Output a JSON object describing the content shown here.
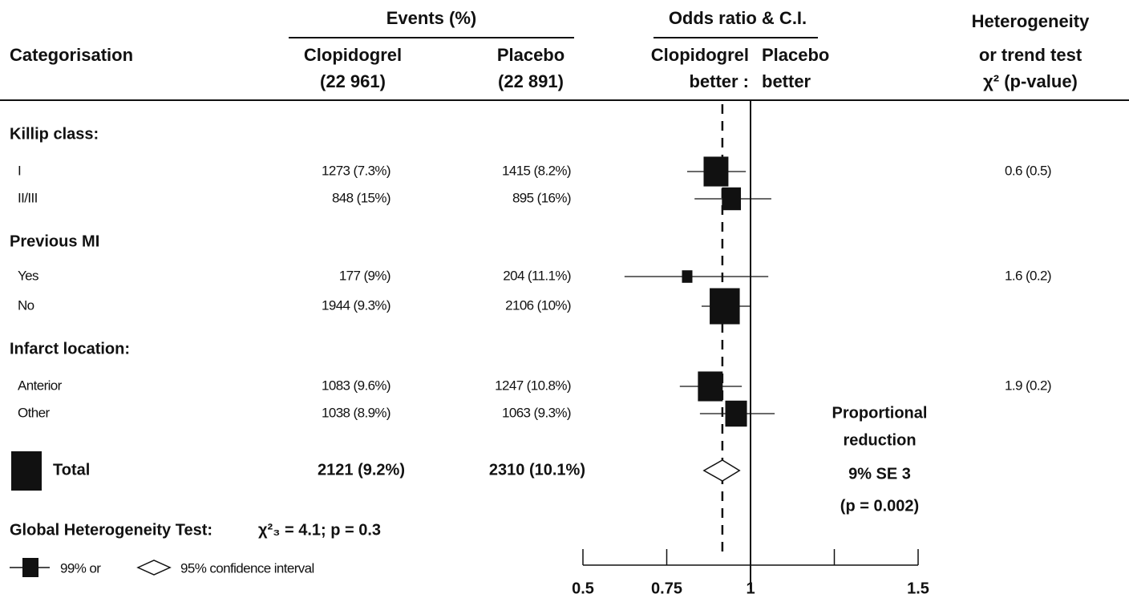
{
  "chart_data": {
    "type": "forest",
    "headers": {
      "category": "Categorisation",
      "events": "Events (%)",
      "clopidogrel": [
        "Clopidogrel",
        "(22 961)"
      ],
      "placebo": [
        "Placebo",
        "(22 891)"
      ],
      "odds": "Odds ratio & C.I.",
      "left_better": [
        "Clopidogrel",
        "better :"
      ],
      "right_better": [
        "Placebo",
        "better"
      ],
      "heterogeneity": [
        "Heterogeneity",
        "or trend test",
        "χ² (p-value)"
      ]
    },
    "groups": [
      {
        "title": "Killip class:",
        "heterogeneity": "0.6 (0.5)",
        "rows": [
          {
            "label": "I",
            "clopidogrel": "1273 (7.3%)",
            "placebo": "1415 (8.2%)",
            "or": 0.897,
            "ci": [
              0.811,
              0.986
            ],
            "weight": 17
          },
          {
            "label": "II/III",
            "clopidogrel": "848 (15%)",
            "placebo": "895 (16%)",
            "or": 0.943,
            "ci": [
              0.833,
              1.062
            ],
            "weight": 10
          }
        ]
      },
      {
        "title": "Previous MI",
        "heterogeneity": "1.6 (0.2)",
        "rows": [
          {
            "label": "Yes",
            "clopidogrel": "177 (9%)",
            "placebo": "204 (11.1%)",
            "or": 0.811,
            "ci": [
              0.624,
              1.053
            ],
            "weight": 3
          },
          {
            "label": "No",
            "clopidogrel": "1944 (9.3%)",
            "placebo": "2106 (10%)",
            "or": 0.923,
            "ci": [
              0.854,
              1.002
            ],
            "weight": 25
          }
        ]
      },
      {
        "title": "Infarct location:",
        "heterogeneity": "1.9 (0.2)",
        "rows": [
          {
            "label": "Anterior",
            "clopidogrel": "1083 (9.6%)",
            "placebo": "1247 (10.8%)",
            "or": 0.88,
            "ci": [
              0.789,
              0.974
            ],
            "weight": 17
          },
          {
            "label": "Other",
            "clopidogrel": "1038 (8.9%)",
            "placebo": "1063 (9.3%)",
            "or": 0.957,
            "ci": [
              0.849,
              1.072
            ],
            "weight": 13
          }
        ]
      }
    ],
    "total": {
      "label": "Total",
      "clopidogrel": "2121 (9.2%)",
      "placebo": "2310 (10.1%)",
      "or": 0.916,
      "ci": [
        0.861,
        0.967
      ]
    },
    "reduction": [
      "Proportional",
      "reduction",
      "9% SE 3",
      "(p = 0.002)"
    ],
    "global_test": [
      "Global Heterogeneity Test:",
      "χ²₃ = 4.1; p = 0.3"
    ],
    "legend": [
      "99% or",
      "95% confidence interval"
    ],
    "xlim": [
      0.5,
      1.5
    ],
    "xticks": [
      0.5,
      0.75,
      1,
      1.5
    ],
    "minor_xticks": [
      1.25
    ],
    "null_line": 1,
    "reference_line": 0.916
  }
}
